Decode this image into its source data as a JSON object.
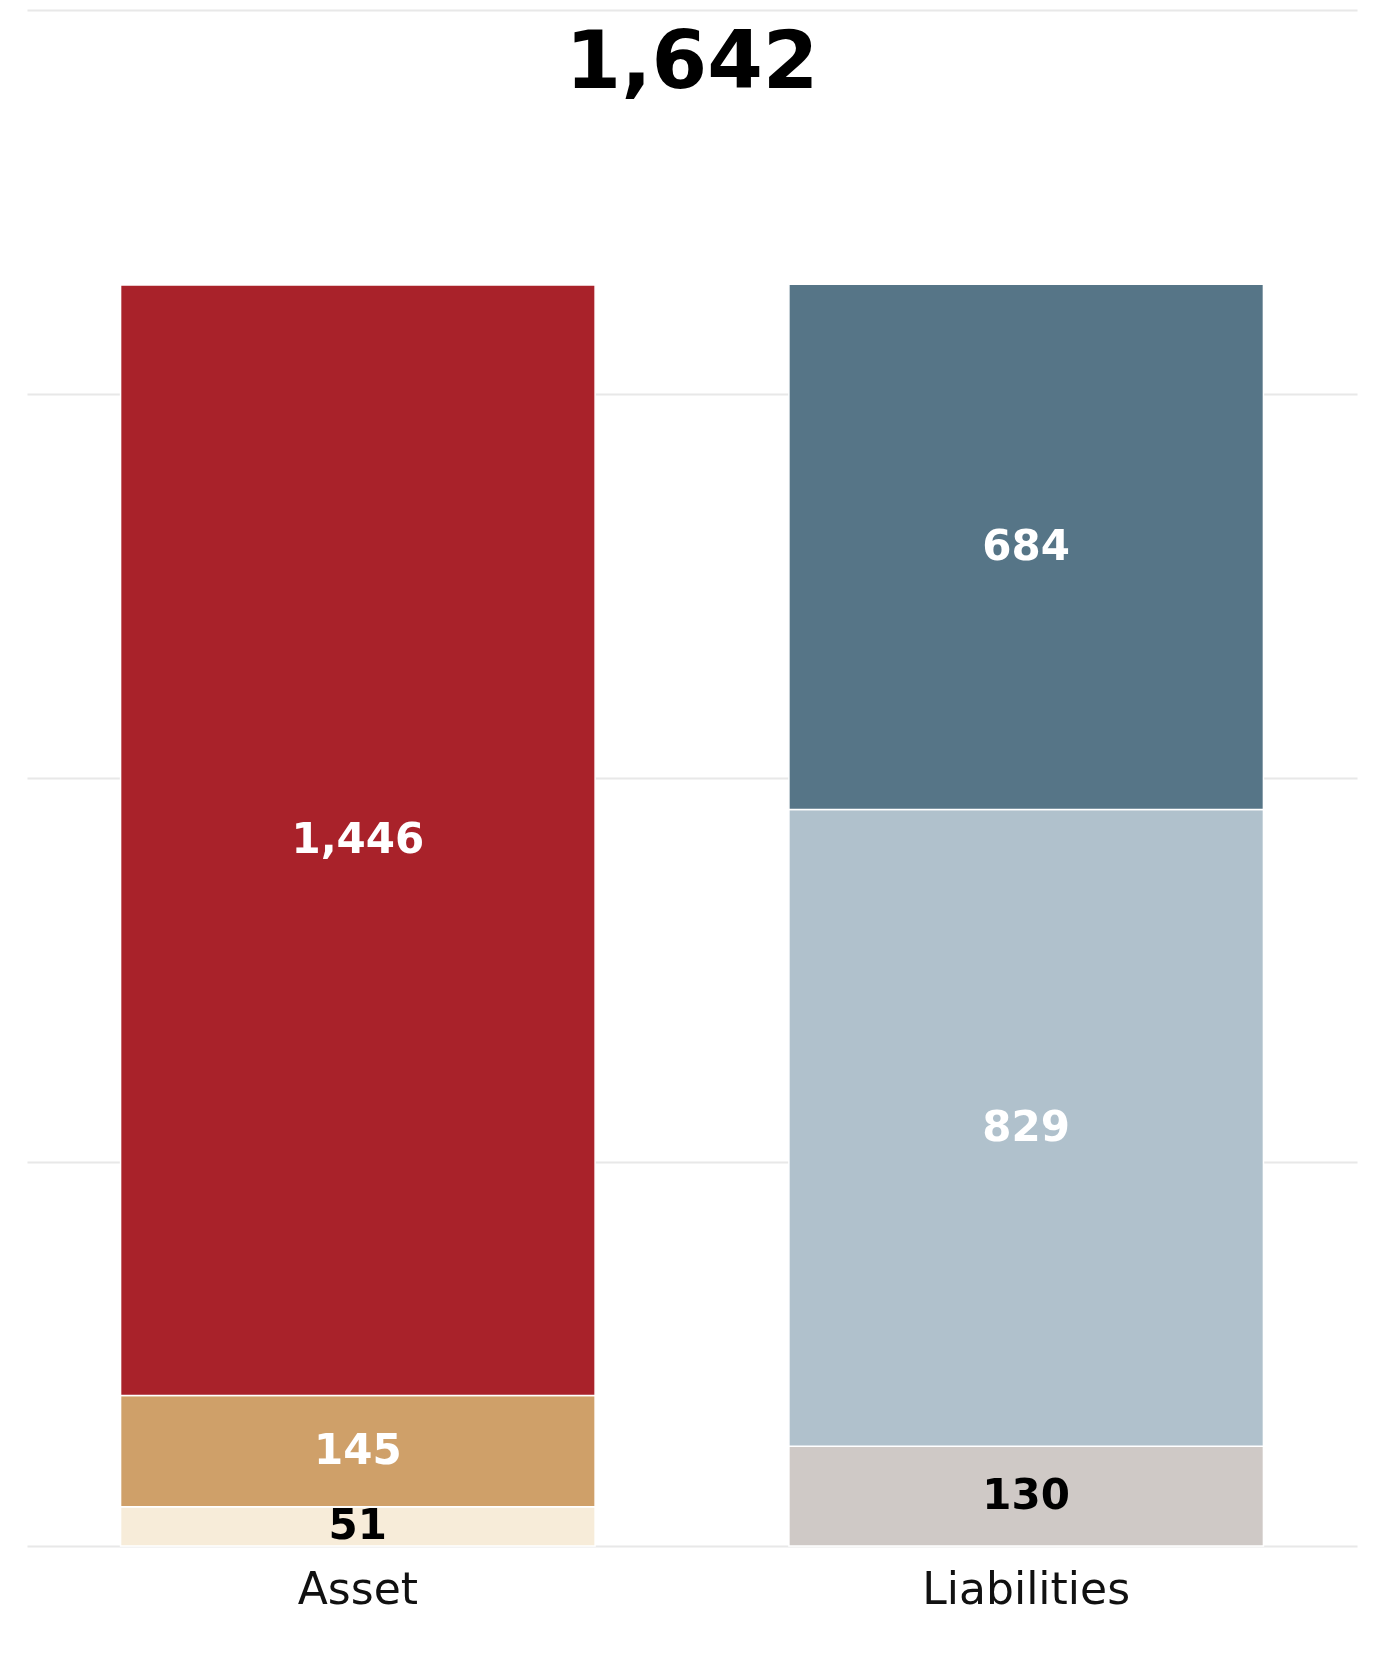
{
  "chart_data": {
    "type": "bar",
    "title": "1,642",
    "stacked": true,
    "grid": "y",
    "tick_labels": "x",
    "categories": [
      "Asset",
      "Liabilities"
    ],
    "ylim": [
      0,
      2000
    ],
    "yticks": [
      {
        "value": 0,
        "label": null
      },
      {
        "value": 500,
        "label": null
      },
      {
        "value": 1000,
        "label": null
      },
      {
        "value": 1500,
        "label": null
      },
      {
        "value": 2000,
        "label": null
      }
    ],
    "series": [
      {
        "colors": [
          "#f7ecd9",
          "#cfc9c6"
        ],
        "values": [
          51,
          130
        ],
        "value_labels": [
          "51",
          "130"
        ]
      },
      {
        "colors": [
          "#cfa069",
          "#b0c1cc"
        ],
        "values": [
          145,
          829
        ],
        "value_labels": [
          "145",
          "829"
        ]
      },
      {
        "colors": [
          "#a9222a",
          "#567587"
        ],
        "values": [
          1446,
          684
        ],
        "value_labels": [
          "1,446",
          "684"
        ]
      }
    ]
  }
}
